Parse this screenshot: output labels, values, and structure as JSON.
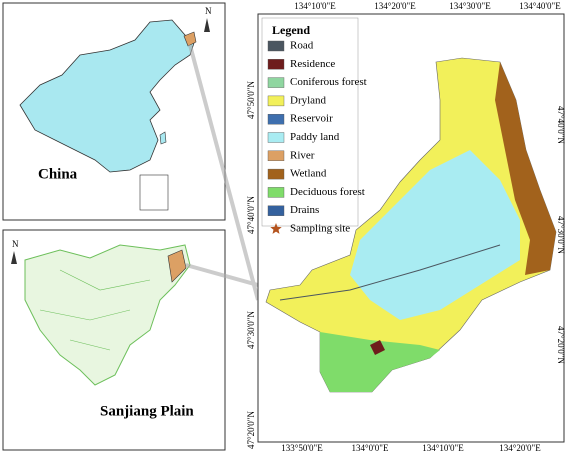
{
  "panels": {
    "china": {
      "label": "China",
      "north": "N"
    },
    "sanjiang": {
      "label": "Sanjiang Plain",
      "north": "N"
    }
  },
  "map": {
    "legend": {
      "title": "Legend",
      "items": [
        {
          "name": "Road",
          "color": "#4b5660"
        },
        {
          "name": "Residence",
          "color": "#6e1c1c"
        },
        {
          "name": "Coniferous forest",
          "color": "#8fd6a0"
        },
        {
          "name": "Dryland",
          "color": "#f2f05a"
        },
        {
          "name": "Reservoir",
          "color": "#3e6fae"
        },
        {
          "name": "Paddy land",
          "color": "#a9ecf2"
        },
        {
          "name": "River",
          "color": "#dca064"
        },
        {
          "name": "Wetland",
          "color": "#a2621c"
        },
        {
          "name": "Deciduous forest",
          "color": "#7fdc6a"
        },
        {
          "name": "Drains",
          "color": "#34619e"
        },
        {
          "name": "Sampling site",
          "color": "#b4531e",
          "symbol": "star"
        }
      ]
    },
    "top_labels": [
      "134°10'0\"E",
      "134°20'0\"E",
      "134°30'0\"E",
      "134°40'0\"E"
    ],
    "bottom_labels": [
      "133°50'0\"E",
      "134°0'0\"E",
      "134°10'0\"E",
      "134°20'0\"E"
    ],
    "left_labels": [
      "47°50'0\"N",
      "47°40'0\"N",
      "47°30'0\"N",
      "47°20'0\"N"
    ],
    "right_labels": [
      "47°40'0\"N",
      "47°30'0\"N",
      "47°20'0\"N"
    ]
  }
}
